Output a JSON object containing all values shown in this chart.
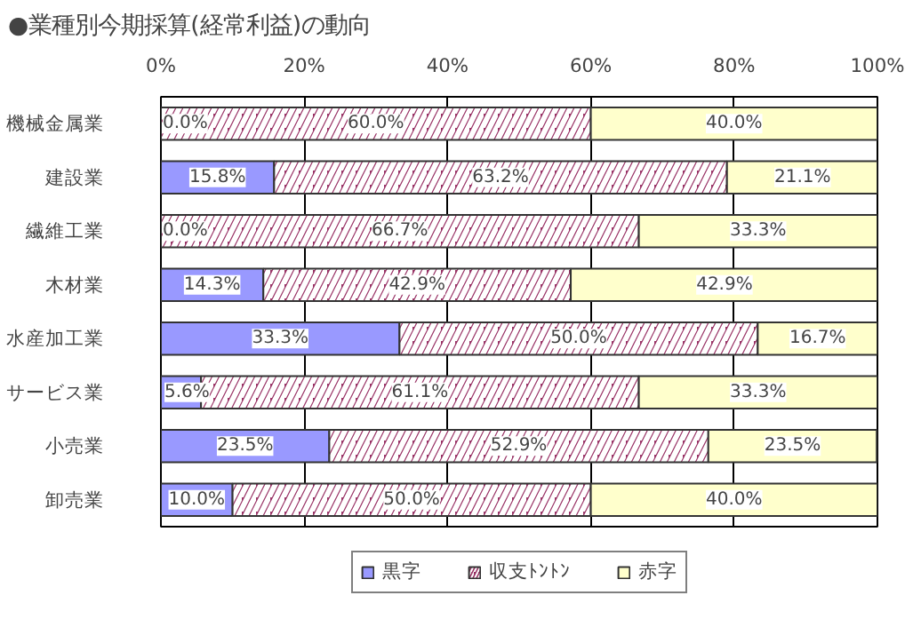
{
  "chart_data": {
    "type": "bar",
    "orientation": "horizontal",
    "stacked": true,
    "title": "●業種別今期採算(経常利益)の動向",
    "categories": [
      "機械金属業",
      "建設業",
      "繊維工業",
      "木材業",
      "水産加工業",
      "サービス業",
      "小売業",
      "卸売業"
    ],
    "series": [
      {
        "name": "黒字",
        "color": "#9999ff",
        "values": [
          0.0,
          15.8,
          0.0,
          14.3,
          33.3,
          5.6,
          23.5,
          10.0
        ],
        "value_labels": [
          "0.0%",
          "15.8%",
          "0.0%",
          "14.3%",
          "33.3%",
          "5.6%",
          "23.5%",
          "10.0%"
        ]
      },
      {
        "name": "収支ﾄﾝﾄﾝ",
        "color": "#993366",
        "values": [
          60.0,
          63.2,
          66.7,
          42.9,
          50.0,
          61.1,
          52.9,
          50.0
        ],
        "value_labels": [
          "60.0%",
          "63.2%",
          "66.7%",
          "42.9%",
          "50.0%",
          "61.1%",
          "52.9%",
          "50.0%"
        ]
      },
      {
        "name": "赤字",
        "color": "#ffffcc",
        "values": [
          40.0,
          21.1,
          33.3,
          42.9,
          16.7,
          33.3,
          23.5,
          40.0
        ],
        "value_labels": [
          "40.0%",
          "21.1%",
          "33.3%",
          "42.9%",
          "16.7%",
          "33.3%",
          "23.5%",
          "40.0%"
        ]
      }
    ],
    "xlim": [
      0,
      100
    ],
    "xticks": [
      {
        "value": 0,
        "label": "0%"
      },
      {
        "value": 20,
        "label": "20%"
      },
      {
        "value": 40,
        "label": "40%"
      },
      {
        "value": 60,
        "label": "60%"
      },
      {
        "value": 80,
        "label": "80%"
      },
      {
        "value": 100,
        "label": "100%"
      }
    ],
    "grid": "x",
    "legend": "bottom"
  }
}
